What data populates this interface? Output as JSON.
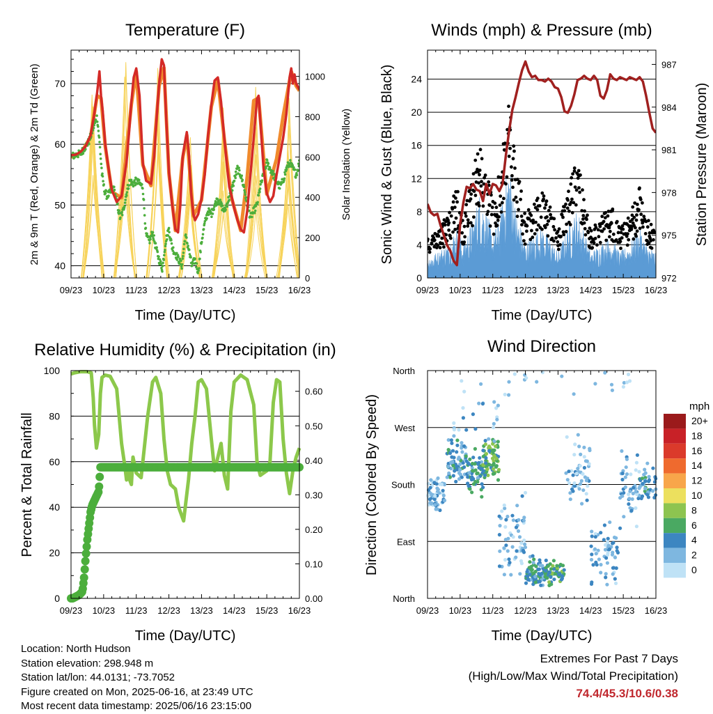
{
  "panels": {
    "temperature": {
      "title": "Temperature (F)",
      "ylabel_left": "2m & 9m T (Red, Orange) & 2m Td (Green)",
      "ylabel_right": "Solar Insolation (Yellow)",
      "xlabel": "Time (Day/UTC)"
    },
    "winds": {
      "title": "Winds (mph) & Pressure (mb)",
      "ylabel_left": "Sonic Wind & Gust (Blue, Black)",
      "ylabel_right": "Station Pressure (Maroon)",
      "xlabel": "Time (Day/UTC)"
    },
    "humidity": {
      "title": "Relative Humidity (%) & Precipitation (in)",
      "ylabel_left": "Percent & Total Rainfall",
      "xlabel": "Time (Day/UTC)"
    },
    "direction": {
      "title": "Wind Direction",
      "ylabel_left": "Direction (Colored By Speed)",
      "xlabel": "Time (Day/UTC)",
      "legend_title": "mph"
    }
  },
  "info": {
    "location": "Location: North Hudson",
    "elevation": "Station elevation: 298.948 m",
    "latlon": "Station lat/lon: 44.0131; -73.7052",
    "created": "Figure created on Mon, 2025-06-16, at 23:49 UTC",
    "recent": "Most recent data timestamp: 2025/06/16 23:15:00"
  },
  "extremes": {
    "title": "Extremes For Past 7 Days",
    "subtitle": "(High/Low/Max Wind/Total Precipitation)",
    "values": "74.4/45.3/10.6/0.38"
  },
  "colors": {
    "temp_2m": "#d42a27",
    "temp_9m": "#f08a2c",
    "dewpoint": "#4cae3c",
    "solar": "#f7d35a",
    "wind": "#5b9bd5",
    "gust": "#000000",
    "pressure": "#a0201f",
    "rh": "#8cc84b",
    "precip": "#4cae3c"
  },
  "chart_data": [
    {
      "type": "line",
      "panel": "temperature",
      "x_ticks": [
        "09/23",
        "10/23",
        "11/23",
        "12/23",
        "13/23",
        "14/23",
        "15/23",
        "16/23"
      ],
      "xlim": [
        0,
        7
      ],
      "ylim": [
        38,
        75.5
      ],
      "y_ticks": [
        40,
        50,
        60,
        70
      ],
      "y2lim": [
        0,
        1130
      ],
      "y2_ticks": [
        0,
        200,
        400,
        600,
        800,
        1000
      ],
      "series": [
        {
          "key": "t2m",
          "x": [
            0,
            0.15,
            0.3,
            0.45,
            0.6,
            0.7,
            0.8,
            0.87,
            0.92,
            0.97,
            1.05,
            1.15,
            1.25,
            1.4,
            1.55,
            1.7,
            1.78,
            1.85,
            1.92,
            2.0,
            2.1,
            2.2,
            2.3,
            2.45,
            2.55,
            2.62,
            2.7,
            2.78,
            2.85,
            2.92,
            3.0,
            3.1,
            3.2,
            3.28,
            3.35,
            3.42,
            3.5,
            3.55,
            3.62,
            3.68,
            3.75,
            3.8,
            3.9,
            4.0,
            4.1,
            4.2,
            4.3,
            4.4,
            4.5,
            4.6,
            4.7,
            4.78,
            4.85,
            4.92,
            5.0,
            5.1,
            5.2,
            5.3,
            5.4,
            5.5,
            5.6,
            5.7,
            5.75,
            5.8,
            5.9,
            6.0,
            6.1,
            6.2,
            6.3,
            6.4,
            6.5,
            6.6,
            6.7,
            6.75,
            6.8,
            6.85,
            6.9,
            7.0
          ],
          "y": [
            58.2,
            58.3,
            58.8,
            59.7,
            61.5,
            64.5,
            68.5,
            72,
            68,
            65.5,
            60,
            56,
            52.5,
            50.5,
            51.5,
            57,
            62,
            67,
            71,
            72.5,
            68,
            57,
            54,
            53.5,
            58,
            64,
            70,
            74,
            73,
            64,
            55.5,
            50,
            46,
            45.5,
            50,
            58,
            60.5,
            62,
            58,
            52,
            48.5,
            47.5,
            48.5,
            51,
            55,
            61.5,
            66.5,
            70.5,
            71,
            67,
            61,
            56.5,
            53,
            51.5,
            49.5,
            47.5,
            46,
            45.5,
            49,
            55,
            61,
            67.5,
            68,
            64,
            56,
            52,
            50.5,
            51.5,
            55,
            58,
            61,
            65,
            71,
            72.5,
            70,
            71.5,
            70,
            69
          ]
        },
        {
          "key": "t9m",
          "x": [
            0,
            0.3,
            0.6,
            0.8,
            0.92,
            1.05,
            1.25,
            1.55,
            1.85,
            2.0,
            2.2,
            2.45,
            2.7,
            2.85,
            3.0,
            3.2,
            3.42,
            3.55,
            3.75,
            4.0,
            4.3,
            4.5,
            4.7,
            4.92,
            5.2,
            5.4,
            5.6,
            5.75,
            6.0,
            6.3,
            6.5,
            6.75,
            6.9,
            7.0
          ],
          "y": [
            57.9,
            58.5,
            61.2,
            68,
            67.6,
            59.6,
            52.2,
            51.2,
            66.6,
            72,
            56.6,
            53.2,
            69.6,
            72.6,
            55.2,
            45.8,
            57.6,
            61.5,
            48.2,
            50.8,
            66.2,
            70.6,
            60.8,
            51.2,
            45.8,
            54.6,
            67.2,
            67.6,
            51.8,
            57.6,
            64.6,
            72,
            69.6,
            68.8
          ]
        },
        {
          "key": "td2m",
          "x": [
            0,
            0.3,
            0.55,
            0.7,
            0.8,
            0.88,
            0.95,
            1.02,
            1.1,
            1.2,
            1.3,
            1.4,
            1.5,
            1.6,
            1.7,
            1.8,
            1.9,
            2.0,
            2.1,
            2.2,
            2.3,
            2.4,
            2.5,
            2.6,
            2.7,
            2.8,
            2.9,
            3.0,
            3.1,
            3.2,
            3.3,
            3.4,
            3.5,
            3.6,
            3.7,
            3.8,
            3.9,
            4.0,
            4.1,
            4.2,
            4.3,
            4.4,
            4.5,
            4.6,
            4.7,
            4.8,
            4.9,
            5.0,
            5.1,
            5.2,
            5.3,
            5.4,
            5.5,
            5.6,
            5.7,
            5.8,
            5.9,
            6.0,
            6.1,
            6.2,
            6.3,
            6.4,
            6.5,
            6.6,
            6.7,
            6.8,
            6.9,
            7.0
          ],
          "y": [
            58,
            58.5,
            60.5,
            63,
            64.5,
            60,
            55,
            52.5,
            51.5,
            52,
            53,
            50.5,
            48,
            49,
            52,
            54,
            53.5,
            54,
            53.5,
            53,
            45,
            44,
            45.5,
            43,
            41,
            39.5,
            44,
            46,
            43,
            42,
            41,
            40,
            45,
            43,
            40,
            41,
            39,
            44,
            47,
            49,
            48.5,
            50,
            51,
            50,
            49,
            50.5,
            52,
            54,
            56,
            55,
            53,
            50,
            48,
            49,
            50,
            53,
            55,
            57,
            56,
            55,
            54,
            53,
            54,
            56,
            57,
            56,
            55,
            57
          ]
        },
        {
          "key": "solar",
          "days": [
            0.66,
            1.66,
            2.66,
            3.66,
            4.66,
            5.66,
            6.66
          ],
          "peaks": [
            1050,
            1130,
            1060,
            800,
            900,
            950,
            1030
          ],
          "axis": "right"
        }
      ]
    },
    {
      "type": "line",
      "panel": "winds",
      "x_ticks": [
        "09/23",
        "10/23",
        "11/23",
        "12/23",
        "13/23",
        "14/23",
        "15/23",
        "16/23"
      ],
      "xlim": [
        0,
        7
      ],
      "ylim": [
        0,
        27.5
      ],
      "y_ticks": [
        0,
        4,
        8,
        12,
        16,
        20,
        24
      ],
      "y2lim": [
        972,
        988
      ],
      "y2_ticks": [
        972,
        975,
        978,
        981,
        984,
        987
      ],
      "series": [
        {
          "key": "pressure",
          "axis": "right",
          "x": [
            0,
            0.1,
            0.2,
            0.3,
            0.4,
            0.5,
            0.6,
            0.7,
            0.8,
            0.9,
            1.0,
            1.1,
            1.2,
            1.3,
            1.4,
            1.5,
            1.6,
            1.7,
            1.8,
            1.9,
            2.0,
            2.1,
            2.2,
            2.3,
            2.4,
            2.5,
            2.6,
            2.7,
            2.8,
            2.9,
            3.0,
            3.1,
            3.2,
            3.3,
            3.4,
            3.5,
            3.6,
            3.7,
            3.8,
            3.9,
            4.0,
            4.1,
            4.2,
            4.3,
            4.4,
            4.5,
            4.6,
            4.7,
            4.8,
            4.9,
            5.0,
            5.1,
            5.2,
            5.3,
            5.4,
            5.5,
            5.6,
            5.7,
            5.8,
            5.9,
            6.0,
            6.1,
            6.2,
            6.3,
            6.4,
            6.5,
            6.6,
            6.7,
            6.8,
            6.9,
            7.0
          ],
          "y": [
            977.2,
            976.6,
            976.4,
            976.5,
            975.7,
            975.0,
            974.3,
            973.9,
            973.2,
            972.9,
            975.8,
            977.3,
            978.4,
            978.3,
            978.6,
            978.2,
            978.1,
            977.4,
            978.6,
            977.9,
            978.6,
            978.5,
            978.1,
            978.6,
            980.6,
            982.3,
            983.8,
            984.7,
            985.7,
            986.6,
            987.2,
            986.5,
            986.1,
            986.2,
            985.9,
            985.9,
            985.8,
            986.0,
            985.8,
            985.4,
            985.3,
            984.7,
            983.7,
            983.6,
            984.1,
            984.9,
            985.9,
            986.0,
            986.2,
            986.0,
            985.9,
            986.2,
            985.9,
            984.8,
            984.6,
            985.2,
            986.3,
            986.0,
            985.9,
            986.1,
            986.0,
            985.9,
            986.1,
            986.0,
            985.9,
            986.1,
            985.8,
            984.8,
            983.6,
            982.5,
            982.2
          ]
        },
        {
          "key": "wind",
          "note": "blue filled sonic wind speed"
        },
        {
          "key": "gust",
          "note": "black gust dots"
        }
      ]
    },
    {
      "type": "line",
      "panel": "humidity",
      "x_ticks": [
        "09/23",
        "10/23",
        "11/23",
        "12/23",
        "13/23",
        "14/23",
        "15/23",
        "16/23"
      ],
      "xlim": [
        0,
        7
      ],
      "ylim": [
        0,
        100
      ],
      "y_ticks": [
        0,
        20,
        40,
        60,
        80,
        100
      ],
      "y2lim": [
        0,
        0.66
      ],
      "y2_ticks": [
        "0.00",
        "0.10",
        "0.20",
        "0.30",
        "0.40",
        "0.50",
        "0.60"
      ],
      "series": [
        {
          "key": "rh",
          "x": [
            0,
            0.1,
            0.3,
            0.5,
            0.62,
            0.68,
            0.72,
            0.78,
            0.85,
            0.9,
            0.95,
            1.05,
            1.2,
            1.4,
            1.55,
            1.65,
            1.7,
            1.75,
            1.8,
            1.85,
            1.9,
            2.0,
            2.15,
            2.35,
            2.5,
            2.6,
            2.75,
            2.85,
            2.95,
            3.05,
            3.2,
            3.3,
            3.45,
            3.6,
            3.7,
            3.8,
            3.9,
            4.0,
            4.15,
            4.3,
            4.4,
            4.5,
            4.6,
            4.7,
            4.8,
            4.9,
            5.0,
            5.2,
            5.4,
            5.6,
            5.7,
            5.8,
            5.9,
            6.0,
            6.1,
            6.2,
            6.3,
            6.4,
            6.5,
            6.6,
            6.7,
            6.8,
            6.9,
            7.0
          ],
          "y": [
            98.5,
            99,
            99.5,
            99.5,
            99,
            88,
            76,
            66,
            72,
            90,
            97,
            98,
            97.5,
            92,
            68,
            58,
            52,
            58,
            52,
            50,
            62,
            55,
            53,
            80,
            95,
            97,
            90,
            70,
            56,
            50,
            48,
            40,
            34,
            52,
            68,
            80,
            95,
            96,
            92,
            70,
            56,
            62,
            68,
            54,
            48,
            82,
            95,
            98,
            96,
            85,
            60,
            54,
            55,
            56,
            60,
            86,
            96,
            95,
            70,
            55,
            46,
            56,
            62,
            66
          ]
        },
        {
          "key": "precip",
          "axis": "right",
          "x": [
            0,
            0.05,
            0.15,
            0.25,
            0.35,
            0.4,
            0.45,
            0.5,
            0.55,
            0.6,
            0.65,
            0.7,
            0.75,
            0.8,
            0.85,
            0.9,
            7.0
          ],
          "y": [
            0,
            0,
            0.005,
            0.01,
            0.02,
            0.06,
            0.12,
            0.17,
            0.21,
            0.25,
            0.27,
            0.28,
            0.29,
            0.3,
            0.31,
            0.38,
            0.38
          ]
        }
      ]
    },
    {
      "type": "scatter",
      "panel": "direction",
      "x_ticks": [
        "09/23",
        "10/23",
        "11/23",
        "12/23",
        "13/23",
        "14/23",
        "15/23",
        "16/23"
      ],
      "xlim": [
        0,
        7
      ],
      "ylim": [
        0,
        360
      ],
      "y_ticks": [
        "North",
        "East",
        "South",
        "West",
        "North"
      ],
      "legend": {
        "title": "mph",
        "labels": [
          "20+",
          "18",
          "16",
          "14",
          "12",
          "10",
          "8",
          "6",
          "4",
          "2",
          "0"
        ],
        "colors": [
          "#9b1a1b",
          "#c82127",
          "#db3a2b",
          "#ef6a2e",
          "#f8a64a",
          "#ece05e",
          "#8dc450",
          "#4aa962",
          "#3c86c1",
          "#7eb7e0",
          "#bfe2f6"
        ]
      }
    }
  ]
}
